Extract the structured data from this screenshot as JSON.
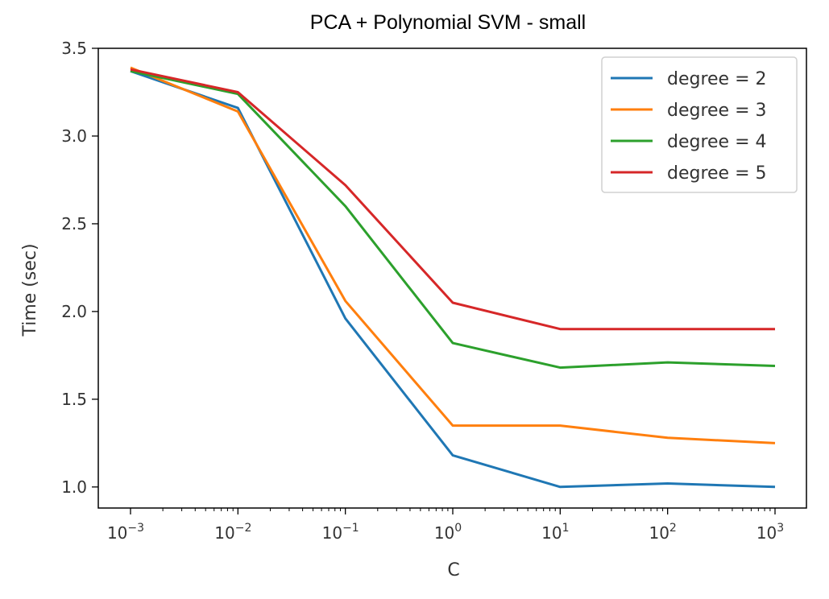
{
  "chart_data": {
    "type": "line",
    "title": "PCA + Polynomial SVM - small",
    "xlabel": "C",
    "ylabel": "Time (sec)",
    "xscale": "log",
    "x": [
      0.001,
      0.01,
      0.1,
      1,
      10,
      100,
      1000
    ],
    "x_tick_labels": [
      {
        "base": "10",
        "exp": "−3"
      },
      {
        "base": "10",
        "exp": "−2"
      },
      {
        "base": "10",
        "exp": "−1"
      },
      {
        "base": "10",
        "exp": "0"
      },
      {
        "base": "10",
        "exp": "1"
      },
      {
        "base": "10",
        "exp": "2"
      },
      {
        "base": "10",
        "exp": "3"
      }
    ],
    "yticks": [
      "1.0",
      "1.5",
      "2.0",
      "2.5",
      "3.0",
      "3.5"
    ],
    "ylim": [
      0.88,
      3.5
    ],
    "grid": false,
    "legend_position": "top-right",
    "series": [
      {
        "name": "degree = 2",
        "color": "#1f77b4",
        "values": [
          3.37,
          3.16,
          1.96,
          1.18,
          1.0,
          1.02,
          1.0
        ]
      },
      {
        "name": "degree = 3",
        "color": "#ff7f0e",
        "values": [
          3.39,
          3.14,
          2.06,
          1.35,
          1.35,
          1.28,
          1.25
        ]
      },
      {
        "name": "degree = 4",
        "color": "#2ca02c",
        "values": [
          3.37,
          3.24,
          2.6,
          1.82,
          1.68,
          1.71,
          1.69
        ]
      },
      {
        "name": "degree = 5",
        "color": "#d62728",
        "values": [
          3.38,
          3.25,
          2.72,
          2.05,
          1.9,
          1.9,
          1.9
        ]
      }
    ]
  }
}
